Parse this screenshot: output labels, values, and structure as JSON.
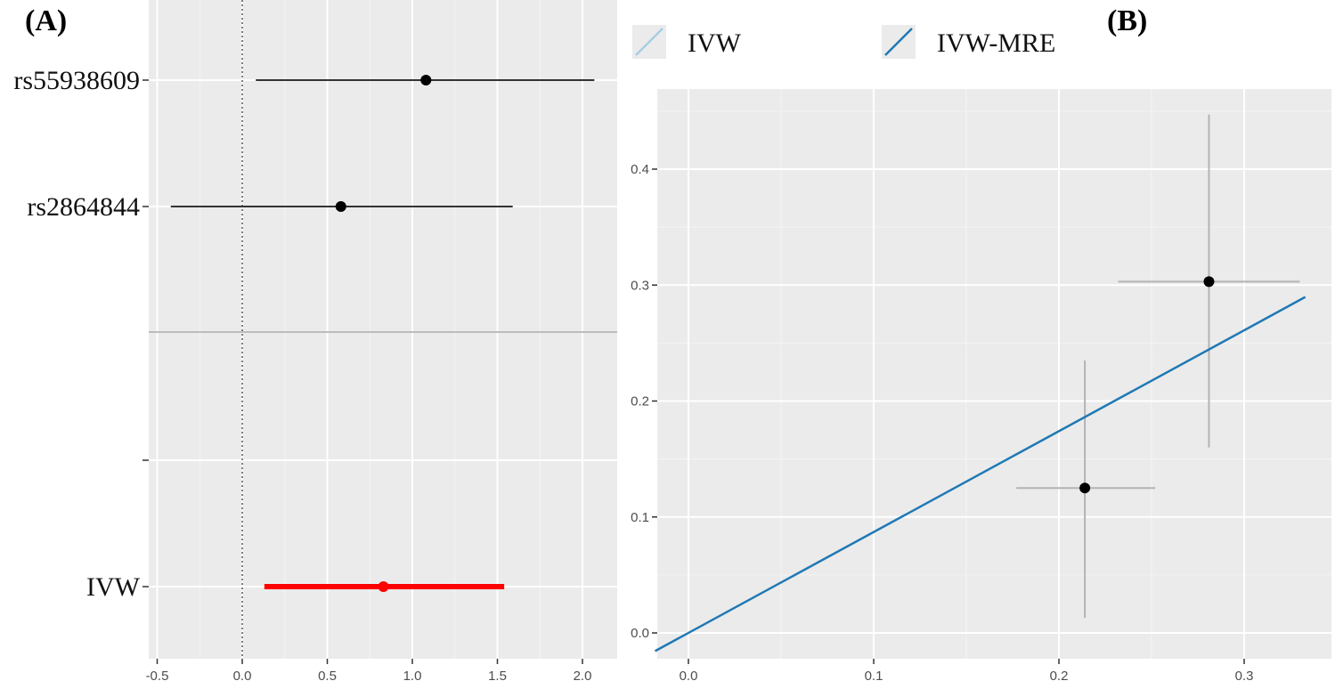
{
  "panel_labels": {
    "a": "(A)",
    "b": "(B)"
  },
  "colors": {
    "panel_bg": "#ebebeb",
    "grid_major": "#ffffff",
    "grid_minor": "#f4f4f4",
    "point": "#000000",
    "ci_line": "#333333",
    "ivw_color": "#ff0000",
    "separator": "#bdbdbd",
    "zero_line": "#555555",
    "scatter_errorbar": "#b3b3b3",
    "ivw_legend": "#a6cee3",
    "ivw_mre": "#1f78b4"
  },
  "chart_data": [
    {
      "type": "forest",
      "panel": "(A)",
      "title": "",
      "xlabel": "",
      "ylabel": "",
      "xlim": [
        -0.55,
        2.2
      ],
      "xticks": [
        "-0.5",
        "0.0",
        "0.5",
        "1.0",
        "1.5",
        "2.0"
      ],
      "xtick_values": [
        -0.5,
        0.0,
        0.5,
        1.0,
        1.5,
        2.0
      ],
      "reference_line": 0,
      "rows": [
        {
          "label": "rs55938609",
          "estimate": 1.08,
          "lower": 0.08,
          "upper": 2.07,
          "color": "#000000"
        },
        {
          "label": "rs2864844",
          "estimate": 0.58,
          "lower": -0.42,
          "upper": 1.59,
          "color": "#000000"
        },
        {
          "label": "IVW",
          "estimate": 0.83,
          "lower": 0.13,
          "upper": 1.54,
          "color": "#ff0000"
        }
      ]
    },
    {
      "type": "scatter",
      "panel": "(B)",
      "title": "",
      "xlabel": "",
      "ylabel": "",
      "xlim": [
        -0.018,
        0.333
      ],
      "ylim": [
        -0.022,
        0.47
      ],
      "xticks": [
        "0.0",
        "0.1",
        "0.2",
        "0.3"
      ],
      "xtick_values": [
        0.0,
        0.1,
        0.2,
        0.3
      ],
      "yticks": [
        "0.0",
        "0.1",
        "0.2",
        "0.3",
        "0.4"
      ],
      "ytick_values": [
        0.0,
        0.1,
        0.2,
        0.3,
        0.4
      ],
      "legend": {
        "position": "top",
        "entries": [
          "IVW",
          "IVW-MRE"
        ]
      },
      "points": [
        {
          "x": 0.214,
          "y": 0.125,
          "x_lower": 0.177,
          "x_upper": 0.252,
          "y_lower": 0.013,
          "y_upper": 0.235
        },
        {
          "x": 0.281,
          "y": 0.303,
          "x_lower": 0.232,
          "x_upper": 0.33,
          "y_lower": 0.16,
          "y_upper": 0.447
        }
      ],
      "lines": [
        {
          "name": "IVW-MRE",
          "slope": 0.87,
          "intercept": 0
        }
      ]
    }
  ]
}
